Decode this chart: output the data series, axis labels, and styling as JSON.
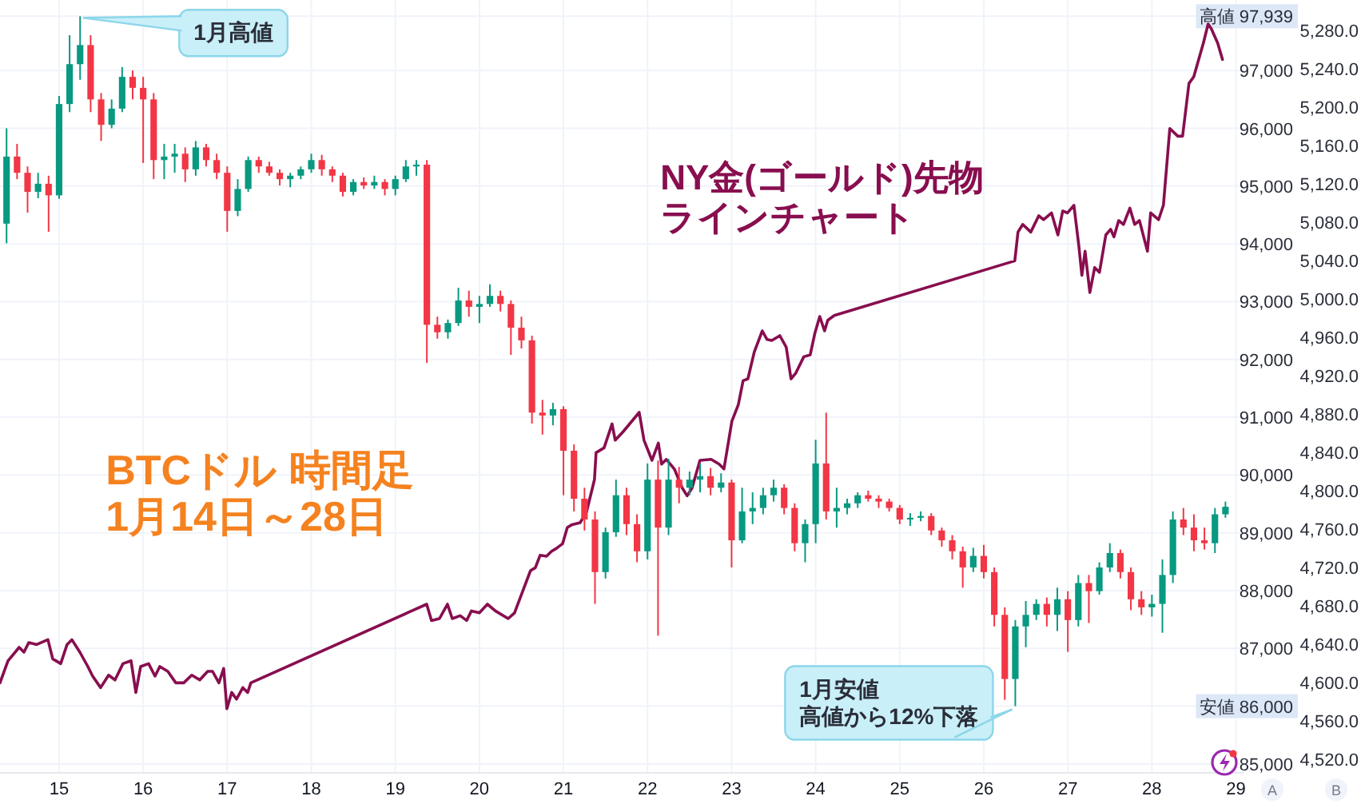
{
  "chart_data": {
    "type": "candlestick",
    "xlim": [
      14.297,
      29.09
    ],
    "xticks": [
      15,
      16,
      17,
      18,
      19,
      20,
      21,
      22,
      23,
      24,
      25,
      26,
      27,
      28,
      29
    ],
    "ylim": [
      84860,
      98220
    ],
    "yticks": [
      {
        "value": 85000,
        "label": "85,000"
      },
      {
        "value": 86000,
        "label": "安値 86,000"
      },
      {
        "value": 87000,
        "label": "87,000"
      },
      {
        "value": 88000,
        "label": "88,000"
      },
      {
        "value": 89000,
        "label": "89,000"
      },
      {
        "value": 90000,
        "label": "90,000"
      },
      {
        "value": 91000,
        "label": "91,000"
      },
      {
        "value": 92000,
        "label": "92,000"
      },
      {
        "value": 93000,
        "label": "93,000"
      },
      {
        "value": 94000,
        "label": "94,000"
      },
      {
        "value": 95000,
        "label": "95,000"
      },
      {
        "value": 96000,
        "label": "96,000"
      },
      {
        "value": 97000,
        "label": "97,000"
      },
      {
        "value": 97939,
        "label": "高値 97,939"
      }
    ],
    "y2lim": [
      4507,
      5312
    ],
    "y2ticks": [
      {
        "value": 4520,
        "label": "4,520.0"
      },
      {
        "value": 4560,
        "label": "4,560.0"
      },
      {
        "value": 4600,
        "label": "4,600.0"
      },
      {
        "value": 4640,
        "label": "4,640.0"
      },
      {
        "value": 4680,
        "label": "4,680.0"
      },
      {
        "value": 4720,
        "label": "4,720.0"
      },
      {
        "value": 4760,
        "label": "4,760.0"
      },
      {
        "value": 4800,
        "label": "4,800.0"
      },
      {
        "value": 4840,
        "label": "4,840.0"
      },
      {
        "value": 4880,
        "label": "4,880.0"
      },
      {
        "value": 4920,
        "label": "4,920.0"
      },
      {
        "value": 4960,
        "label": "4,960.0"
      },
      {
        "value": 5000,
        "label": "5,000.0"
      },
      {
        "value": 5040,
        "label": "5,040.0"
      },
      {
        "value": 5080,
        "label": "5,080.0"
      },
      {
        "value": 5120,
        "label": "5,120.0"
      },
      {
        "value": 5160,
        "label": "5,160.0"
      },
      {
        "value": 5200,
        "label": "5,200.0"
      },
      {
        "value": 5240,
        "label": "5,240.0"
      },
      {
        "value": 5280,
        "label": "5,280.0"
      }
    ],
    "ylabel": "A",
    "y2label": "B",
    "grid": true,
    "series": [
      {
        "type": "candlestick",
        "x": [
          14.375,
          14.5,
          14.625,
          14.75,
          14.875,
          15,
          15.125,
          15.25,
          15.375,
          15.5,
          15.625,
          15.75,
          15.875,
          16,
          16.125,
          16.25,
          16.375,
          16.5,
          16.625,
          16.75,
          16.875,
          17,
          17.125,
          17.25,
          17.375,
          17.5,
          17.625,
          17.75,
          17.875,
          18,
          18.125,
          18.25,
          18.375,
          18.5,
          18.625,
          18.75,
          18.875,
          19,
          19.125,
          19.25,
          19.375,
          19.5,
          19.625,
          19.75,
          19.875,
          20,
          20.125,
          20.25,
          20.375,
          20.5,
          20.625,
          20.75,
          20.875,
          21,
          21.125,
          21.25,
          21.375,
          21.5,
          21.625,
          21.75,
          21.875,
          22,
          22.125,
          22.25,
          22.375,
          22.5,
          22.625,
          22.75,
          22.875,
          23,
          23.125,
          23.25,
          23.375,
          23.5,
          23.625,
          23.75,
          23.875,
          24,
          24.125,
          24.25,
          24.375,
          24.5,
          24.625,
          24.75,
          24.875,
          25,
          25.125,
          25.25,
          25.375,
          25.5,
          25.625,
          25.75,
          25.875,
          26,
          26.125,
          26.25,
          26.375,
          26.5,
          26.625,
          26.75,
          26.875,
          27,
          27.125,
          27.25,
          27.375,
          27.5,
          27.625,
          27.75,
          27.875,
          28,
          28.125,
          28.25,
          28.375,
          28.5,
          28.625,
          28.75,
          28.875
        ],
        "ohlc": [
          [
            94350,
            96000,
            94010,
            95510
          ],
          [
            95510,
            95730,
            95120,
            95230
          ],
          [
            95230,
            95340,
            94540,
            94900
          ],
          [
            94900,
            95230,
            94790,
            95040
          ],
          [
            95040,
            95180,
            94210,
            94840
          ],
          [
            94840,
            96560,
            94780,
            96420
          ],
          [
            96420,
            97610,
            96280,
            97110
          ],
          [
            97110,
            97939,
            96840,
            97440
          ],
          [
            97440,
            97610,
            96280,
            96500
          ],
          [
            96500,
            96610,
            95780,
            96060
          ],
          [
            96060,
            96500,
            96000,
            96340
          ],
          [
            96340,
            97060,
            96280,
            96890
          ],
          [
            96890,
            97000,
            96500,
            96700
          ],
          [
            96700,
            96890,
            95400,
            96500
          ],
          [
            96500,
            96610,
            95120,
            95450
          ],
          [
            95450,
            95730,
            95120,
            95510
          ],
          [
            95510,
            95730,
            95230,
            95560
          ],
          [
            95560,
            95670,
            95070,
            95290
          ],
          [
            95290,
            95780,
            95180,
            95670
          ],
          [
            95670,
            95730,
            95340,
            95450
          ],
          [
            95450,
            95560,
            95120,
            95230
          ],
          [
            95230,
            95340,
            94210,
            94570
          ],
          [
            94570,
            95120,
            94480,
            94950
          ],
          [
            94950,
            95510,
            94900,
            95450
          ],
          [
            95450,
            95510,
            95230,
            95340
          ],
          [
            95340,
            95420,
            95180,
            95230
          ],
          [
            95230,
            95290,
            95010,
            95120
          ],
          [
            95120,
            95230,
            94980,
            95180
          ],
          [
            95180,
            95340,
            95120,
            95290
          ],
          [
            95290,
            95560,
            95230,
            95450
          ],
          [
            95450,
            95540,
            95180,
            95290
          ],
          [
            95290,
            95340,
            95070,
            95180
          ],
          [
            95180,
            95230,
            94820,
            94900
          ],
          [
            94900,
            95120,
            94840,
            95070
          ],
          [
            95070,
            95150,
            94950,
            95010
          ],
          [
            95010,
            95180,
            94950,
            95070
          ],
          [
            95070,
            95120,
            94840,
            94950
          ],
          [
            94950,
            95180,
            94840,
            95120
          ],
          [
            95120,
            95450,
            95070,
            95340
          ],
          [
            95340,
            95450,
            95180,
            95370
          ],
          [
            95370,
            95450,
            91940,
            92600
          ],
          [
            92600,
            92740,
            92360,
            92470
          ],
          [
            92470,
            92690,
            92360,
            92630
          ],
          [
            92630,
            93240,
            92580,
            93020
          ],
          [
            93020,
            93190,
            92740,
            92910
          ],
          [
            92910,
            93100,
            92630,
            92960
          ],
          [
            92960,
            93300,
            92910,
            93100
          ],
          [
            93100,
            93190,
            92830,
            92960
          ],
          [
            92960,
            93020,
            92080,
            92550
          ],
          [
            92550,
            92740,
            92190,
            92330
          ],
          [
            92330,
            92410,
            90890,
            91080
          ],
          [
            91080,
            91300,
            90700,
            91030
          ],
          [
            91030,
            91250,
            90860,
            91140
          ],
          [
            91140,
            91190,
            89650,
            90420
          ],
          [
            90420,
            90530,
            89370,
            89590
          ],
          [
            89590,
            89780,
            89040,
            89230
          ],
          [
            89230,
            89370,
            87770,
            88320
          ],
          [
            88320,
            89090,
            88210,
            89010
          ],
          [
            89010,
            89920,
            88930,
            89650
          ],
          [
            89650,
            89780,
            88960,
            89150
          ],
          [
            89150,
            89320,
            88490,
            88680
          ],
          [
            88680,
            90200,
            88540,
            89920
          ],
          [
            89920,
            90250,
            87220,
            89090
          ],
          [
            89090,
            90280,
            88960,
            89920
          ],
          [
            89920,
            90140,
            89510,
            89780
          ],
          [
            89780,
            90060,
            89650,
            89920
          ],
          [
            89920,
            90200,
            89700,
            89980
          ],
          [
            89980,
            90120,
            89650,
            89780
          ],
          [
            89780,
            90030,
            89700,
            89870
          ],
          [
            89870,
            89920,
            88400,
            88870
          ],
          [
            88870,
            89780,
            88820,
            89370
          ],
          [
            89370,
            89700,
            89150,
            89430
          ],
          [
            89430,
            89780,
            89320,
            89650
          ],
          [
            89650,
            89920,
            89540,
            89780
          ],
          [
            89780,
            89840,
            89320,
            89430
          ],
          [
            89430,
            89510,
            88680,
            88820
          ],
          [
            88820,
            89230,
            88490,
            89150
          ],
          [
            89150,
            90610,
            88820,
            90200
          ],
          [
            90200,
            91080,
            89230,
            89370
          ],
          [
            89370,
            89780,
            89090,
            89430
          ],
          [
            89430,
            89590,
            89320,
            89510
          ],
          [
            89510,
            89700,
            89430,
            89650
          ],
          [
            89650,
            89730,
            89540,
            89590
          ],
          [
            89590,
            89650,
            89430,
            89540
          ],
          [
            89540,
            89590,
            89370,
            89430
          ],
          [
            89430,
            89480,
            89150,
            89230
          ],
          [
            89230,
            89340,
            89120,
            89260
          ],
          [
            89260,
            89370,
            89200,
            89290
          ],
          [
            89290,
            89340,
            88960,
            89040
          ],
          [
            89040,
            89090,
            88760,
            88870
          ],
          [
            88870,
            88960,
            88540,
            88680
          ],
          [
            88680,
            88760,
            88050,
            88400
          ],
          [
            88400,
            88740,
            88320,
            88600
          ],
          [
            88600,
            88790,
            88210,
            88320
          ],
          [
            88320,
            88400,
            87380,
            87580
          ],
          [
            87580,
            87710,
            86110,
            86470
          ],
          [
            86470,
            87490,
            86000,
            87380
          ],
          [
            87380,
            87820,
            87020,
            87580
          ],
          [
            87580,
            87850,
            87490,
            87770
          ],
          [
            87770,
            87880,
            87380,
            87580
          ],
          [
            87580,
            88050,
            87300,
            87850
          ],
          [
            87850,
            87990,
            86940,
            87490
          ],
          [
            87490,
            88270,
            87380,
            88130
          ],
          [
            88130,
            88270,
            87440,
            87990
          ],
          [
            87990,
            88490,
            87930,
            88400
          ],
          [
            88400,
            88820,
            88320,
            88650
          ],
          [
            88650,
            88710,
            88210,
            88320
          ],
          [
            88320,
            88400,
            87660,
            87850
          ],
          [
            87850,
            87990,
            87580,
            87710
          ],
          [
            87710,
            87930,
            87550,
            87770
          ],
          [
            87770,
            88540,
            87270,
            88270
          ],
          [
            88270,
            89370,
            88130,
            89230
          ],
          [
            89230,
            89430,
            88960,
            89090
          ],
          [
            89090,
            89320,
            88680,
            88870
          ],
          [
            88870,
            89090,
            88710,
            88820
          ],
          [
            88820,
            89430,
            88650,
            89320
          ],
          [
            89320,
            89540,
            89260,
            89450
          ]
        ],
        "colors": [
          "#089981",
          "#f23645",
          "#f23645",
          "#089981",
          "#f23645",
          "#089981",
          "#089981",
          "#089981",
          "#f23645",
          "#f23645",
          "#089981",
          "#089981",
          "#f23645",
          "#f23645",
          "#f23645",
          "#089981",
          "#089981",
          "#f23645",
          "#089981",
          "#f23645",
          "#f23645",
          "#f23645",
          "#089981",
          "#089981",
          "#f23645",
          "#f23645",
          "#f23645",
          "#089981",
          "#089981",
          "#089981",
          "#f23645",
          "#f23645",
          "#f23645",
          "#089981",
          "#f23645",
          "#089981",
          "#f23645",
          "#089981",
          "#089981",
          "#089981",
          "#f23645",
          "#f23645",
          "#089981",
          "#089981",
          "#f23645",
          "#089981",
          "#089981",
          "#f23645",
          "#f23645",
          "#f23645",
          "#f23645",
          "#f23645",
          "#089981",
          "#f23645",
          "#f23645",
          "#f23645",
          "#f23645",
          "#089981",
          "#089981",
          "#f23645",
          "#f23645",
          "#089981",
          "#f23645",
          "#089981",
          "#f23645",
          "#089981",
          "#089981",
          "#f23645",
          "#089981",
          "#f23645",
          "#089981",
          "#089981",
          "#089981",
          "#089981",
          "#f23645",
          "#f23645",
          "#089981",
          "#089981",
          "#f23645",
          "#089981",
          "#089981",
          "#089981",
          "#f23645",
          "#f23645",
          "#f23645",
          "#f23645",
          "#089981",
          "#089981",
          "#f23645",
          "#f23645",
          "#f23645",
          "#f23645",
          "#089981",
          "#f23645",
          "#f23645",
          "#f23645",
          "#089981",
          "#089981",
          "#089981",
          "#f23645",
          "#089981",
          "#f23645",
          "#089981",
          "#f23645",
          "#089981",
          "#089981",
          "#f23645",
          "#f23645",
          "#f23645",
          "#089981",
          "#089981",
          "#089981",
          "#f23645",
          "#f23645",
          "#f23645",
          "#089981",
          "#089981"
        ]
      },
      {
        "type": "line",
        "name": "NY金(ゴールド)先物ラインチャート",
        "color": "#880e4f",
        "axis": "y2",
        "x": [
          14.297,
          14.392,
          14.525,
          14.582,
          14.639,
          14.734,
          14.867,
          14.924,
          15.019,
          15.095,
          15.152,
          15.247,
          15.342,
          15.399,
          15.494,
          15.589,
          15.665,
          15.76,
          15.856,
          15.913,
          15.97,
          16.065,
          16.141,
          16.198,
          16.293,
          16.388,
          16.483,
          16.578,
          16.673,
          16.768,
          16.825,
          16.901,
          16.958,
          16.996,
          17.053,
          17.11,
          17.186,
          17.243,
          17.281,
          19.373,
          19.43,
          19.525,
          19.62,
          19.677,
          19.772,
          19.848,
          19.905,
          20.0,
          20.095,
          20.19,
          20.342,
          20.418,
          20.513,
          20.608,
          20.665,
          20.722,
          20.798,
          20.856,
          20.913,
          20.989,
          21.046,
          21.103,
          21.198,
          21.274,
          21.369,
          21.388,
          21.483,
          21.578,
          21.616,
          21.711,
          21.901,
          21.958,
          22.053,
          22.129,
          22.167,
          22.224,
          22.319,
          22.414,
          22.471,
          22.529,
          22.624,
          22.757,
          22.852,
          22.909,
          23.004,
          23.08,
          23.137,
          23.194,
          23.27,
          23.365,
          23.422,
          23.479,
          23.574,
          23.65,
          23.707,
          23.764,
          23.859,
          23.935,
          23.992,
          24.049,
          24.106,
          24.144,
          24.221,
          26.369,
          26.407,
          26.464,
          26.559,
          26.654,
          26.711,
          26.806,
          26.882,
          26.939,
          26.996,
          27.072,
          27.129,
          27.167,
          27.205,
          27.262,
          27.319,
          27.376,
          27.452,
          27.509,
          27.548,
          27.605,
          27.662,
          27.738,
          27.795,
          27.852,
          27.947,
          27.985,
          28.08,
          28.137,
          28.213,
          28.308,
          28.365,
          28.441,
          28.498,
          28.612,
          28.669,
          28.707,
          28.783,
          28.84
        ],
        "values": [
          4600,
          4623,
          4637,
          4632,
          4642,
          4640,
          4645,
          4625,
          4620,
          4640,
          4645,
          4632,
          4617,
          4607,
          4595,
          4608,
          4603,
          4620,
          4623,
          4590,
          4617,
          4620,
          4607,
          4617,
          4612,
          4600,
          4600,
          4608,
          4603,
          4612,
          4612,
          4600,
          4615,
          4573,
          4590,
          4583,
          4595,
          4590,
          4600,
          4682,
          4665,
          4667,
          4682,
          4667,
          4670,
          4665,
          4675,
          4673,
          4682,
          4675,
          4667,
          4673,
          4695,
          4717,
          4720,
          4733,
          4732,
          4737,
          4740,
          4745,
          4762,
          4765,
          4767,
          4778,
          4812,
          4840,
          4845,
          4870,
          4853,
          4862,
          4882,
          4853,
          4832,
          4850,
          4828,
          4833,
          4823,
          4803,
          4795,
          4803,
          4832,
          4833,
          4828,
          4823,
          4873,
          4890,
          4915,
          4917,
          4945,
          4967,
          4958,
          4957,
          4962,
          4950,
          4917,
          4923,
          4940,
          4942,
          4965,
          4982,
          4967,
          4978,
          4983,
          5040,
          5070,
          5078,
          5070,
          5087,
          5083,
          5090,
          5067,
          5092,
          5090,
          5098,
          5057,
          5025,
          5050,
          5007,
          5033,
          5028,
          5067,
          5073,
          5065,
          5082,
          5078,
          5095,
          5078,
          5082,
          5050,
          5090,
          5083,
          5098,
          5178,
          5170,
          5170,
          5225,
          5232,
          5267,
          5287,
          5282,
          5267,
          5250
        ]
      }
    ],
    "annotations": [
      {
        "text": "1月高値",
        "x": 15.25,
        "y": 97939
      },
      "1月安値",
      {
        "text": "高値から12%下落",
        "x": 26.375,
        "y": 86000
      },
      "BTCドル 時間足\n1月14日～28日"
    ]
  }
}
